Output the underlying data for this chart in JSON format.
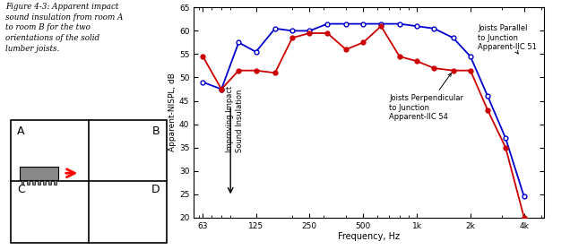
{
  "freqs": [
    63,
    80,
    100,
    125,
    160,
    200,
    250,
    315,
    400,
    500,
    630,
    800,
    1000,
    1250,
    1600,
    2000,
    2500,
    3150,
    4000
  ],
  "blue_parallel": [
    49,
    47.5,
    57.5,
    55.5,
    60.5,
    60,
    60,
    61.5,
    61.5,
    61.5,
    61.5,
    61.5,
    61,
    60.5,
    58.5,
    54.5,
    46,
    37,
    24.5
  ],
  "red_perp": [
    54.5,
    47.5,
    51.5,
    51.5,
    51,
    58.5,
    59.5,
    59.5,
    56,
    57.5,
    61,
    54.5,
    53.5,
    52,
    51.5,
    51.5,
    43,
    35,
    20
  ],
  "ylabel": "Apparent-NISPL, dB",
  "xlabel": "Frequency, Hz",
  "ylim": [
    20,
    65
  ],
  "yticks": [
    20,
    25,
    30,
    35,
    40,
    45,
    50,
    55,
    60,
    65
  ],
  "xtick_labels": [
    "63",
    "125",
    "250",
    "500",
    "1k",
    "2k",
    "4k"
  ],
  "blue_label": "Joists Parallel\nto Junction\nApparent-IIC 51",
  "red_label": "Joists Perpendicular\nto Junction\nApparent-IIC 54",
  "arrow_text": "Improving Impact\nSound Insulation",
  "blue_color": "#0000cc",
  "red_color": "#cc0000",
  "background": "#ffffff",
  "title_text": "Figure 4-3: Apparent impact\nsound insulation from room A\nto room B for the two\norientations of the solid\nlumber joists."
}
